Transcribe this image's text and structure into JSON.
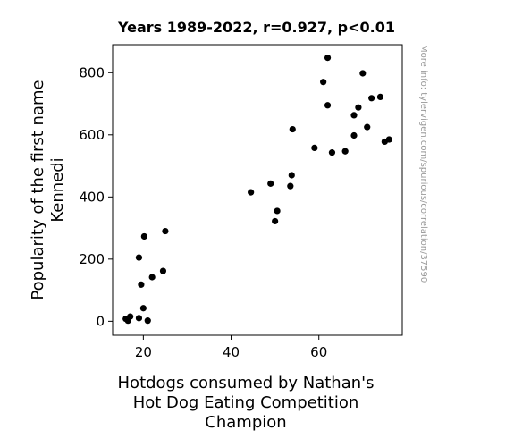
{
  "chart_data": {
    "type": "scatter",
    "title": "Years 1989-2022, r=0.927, p<0.01",
    "xlabel": "Hotdogs consumed by Nathan's\nHot Dog Eating Competition\nChampion",
    "ylabel": "Popularity of the first name\nKennedi",
    "watermark": "More info: tylervigen.com/spurious/correlation/3759⁠ 0",
    "xlim": [
      13,
      79
    ],
    "ylim": [
      -45,
      890
    ],
    "xticks": [
      20,
      40,
      60
    ],
    "yticks": [
      0,
      200,
      400,
      600,
      800
    ],
    "grid": false,
    "marker_color": "#000000",
    "points": [
      {
        "x": 16,
        "y": 8
      },
      {
        "x": 16.5,
        "y": 2
      },
      {
        "x": 17,
        "y": 15
      },
      {
        "x": 19,
        "y": 10
      },
      {
        "x": 19,
        "y": 205
      },
      {
        "x": 19.5,
        "y": 118
      },
      {
        "x": 20,
        "y": 42
      },
      {
        "x": 20.2,
        "y": 273
      },
      {
        "x": 21,
        "y": 2
      },
      {
        "x": 22,
        "y": 142
      },
      {
        "x": 24.5,
        "y": 162
      },
      {
        "x": 25,
        "y": 290
      },
      {
        "x": 44.5,
        "y": 415
      },
      {
        "x": 49,
        "y": 443
      },
      {
        "x": 50,
        "y": 322
      },
      {
        "x": 50.5,
        "y": 355
      },
      {
        "x": 53.5,
        "y": 435
      },
      {
        "x": 53.8,
        "y": 470
      },
      {
        "x": 54,
        "y": 618
      },
      {
        "x": 59,
        "y": 558
      },
      {
        "x": 61,
        "y": 770
      },
      {
        "x": 62,
        "y": 848
      },
      {
        "x": 62,
        "y": 695
      },
      {
        "x": 63,
        "y": 543
      },
      {
        "x": 66,
        "y": 547
      },
      {
        "x": 68,
        "y": 598
      },
      {
        "x": 68,
        "y": 663
      },
      {
        "x": 69,
        "y": 688
      },
      {
        "x": 70,
        "y": 798
      },
      {
        "x": 71,
        "y": 625
      },
      {
        "x": 72,
        "y": 718
      },
      {
        "x": 74,
        "y": 722
      },
      {
        "x": 75,
        "y": 578
      },
      {
        "x": 76,
        "y": 585
      }
    ]
  }
}
